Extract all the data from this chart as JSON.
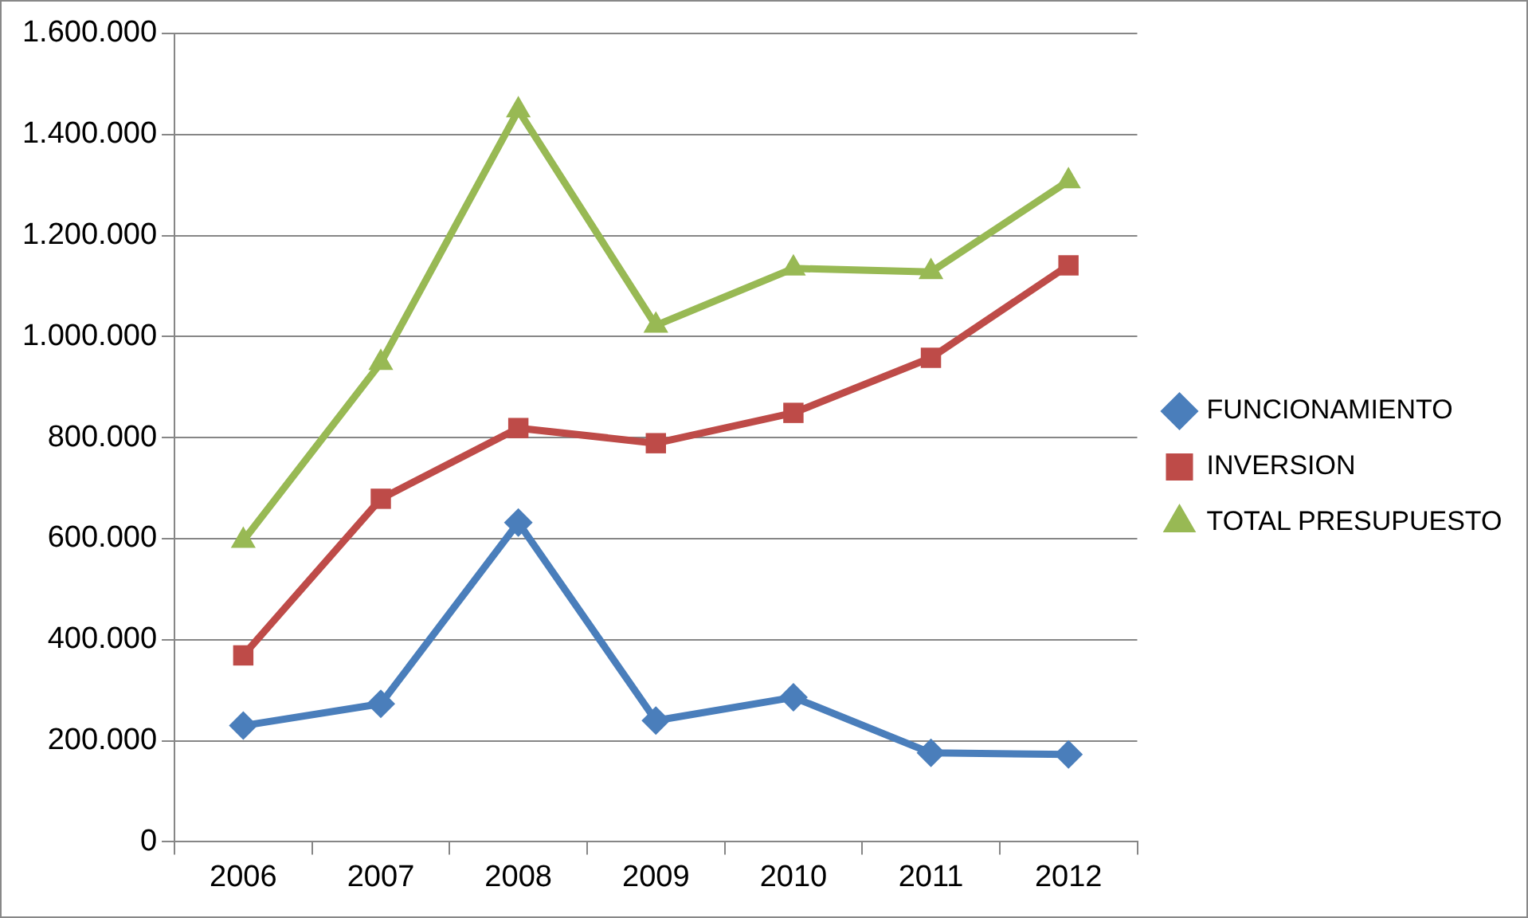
{
  "chart_data": {
    "type": "line",
    "categories": [
      "2006",
      "2007",
      "2008",
      "2009",
      "2010",
      "2011",
      "2012"
    ],
    "series": [
      {
        "name": "FUNCIONAMIENTO",
        "color": "#4a7ebb",
        "marker": "diamond",
        "values": [
          230000,
          273000,
          632000,
          240000,
          286000,
          176000,
          173000
        ]
      },
      {
        "name": "INVERSION",
        "color": "#be4b48",
        "marker": "square",
        "values": [
          369000,
          679000,
          819000,
          789000,
          849000,
          958000,
          1141000
        ]
      },
      {
        "name": "TOTAL PRESUPUESTO",
        "color": "#98b954",
        "marker": "triangle",
        "values": [
          596000,
          948000,
          1448000,
          1022000,
          1135000,
          1128000,
          1308000
        ]
      }
    ],
    "ylim": [
      0,
      1600000
    ],
    "yticks": [
      0,
      {
        "value": 200000,
        "label": "200.000"
      },
      {
        "value": 400000,
        "label": "400.000"
      },
      {
        "value": 600000,
        "label": "600.000"
      },
      {
        "value": 800000,
        "label": "800.000"
      },
      {
        "value": 1000000,
        "label": "1.000.000"
      },
      {
        "value": 1200000,
        "label": "1.200.000"
      },
      {
        "value": 1400000,
        "label": "1.400.000"
      },
      {
        "value": 1600000,
        "label": "1.600.000"
      }
    ],
    "grid": "y",
    "legend": "right",
    "line_style": "solid"
  }
}
